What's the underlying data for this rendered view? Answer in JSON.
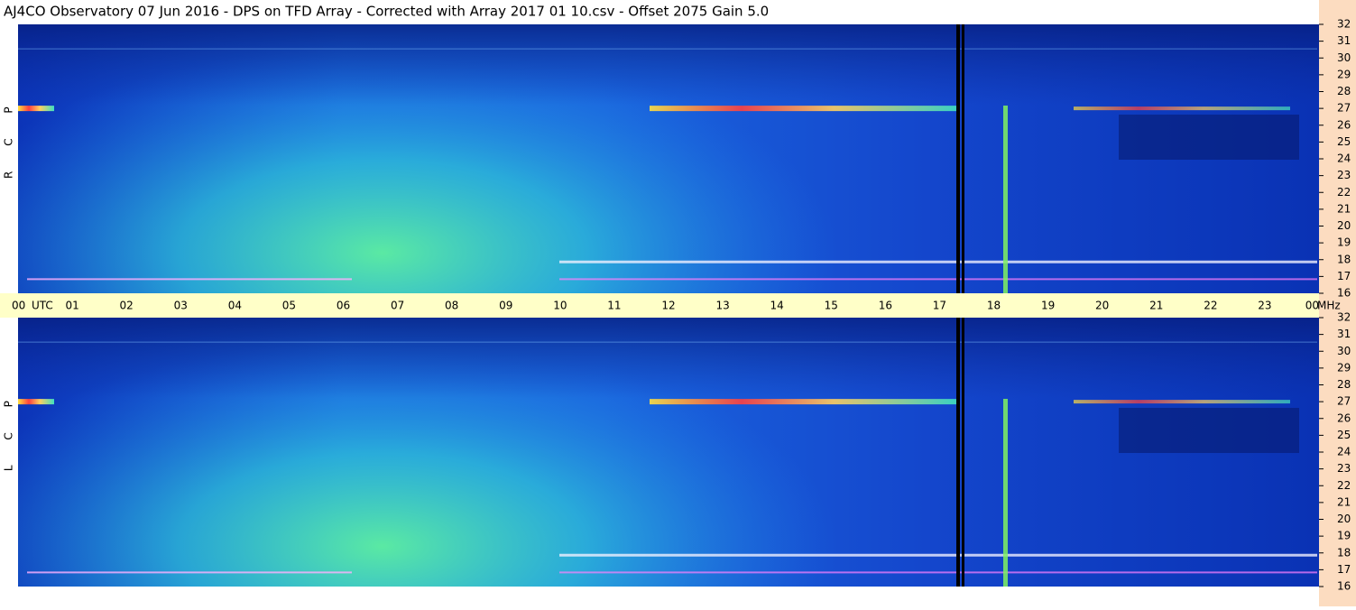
{
  "header": {
    "title": "AJ4CO Observatory  07 Jun 2016  -  DPS on TFD Array  -  Corrected with Array 2017 01 10.csv  -  Offset 2075  Gain 5.0"
  },
  "panels": [
    {
      "label": "R C P"
    },
    {
      "label": "L C P"
    }
  ],
  "time_axis": {
    "unit": "UTC",
    "hours": [
      "00",
      "01",
      "02",
      "03",
      "04",
      "05",
      "06",
      "07",
      "08",
      "09",
      "10",
      "11",
      "12",
      "13",
      "14",
      "15",
      "16",
      "17",
      "18",
      "19",
      "20",
      "21",
      "22",
      "23",
      "00"
    ]
  },
  "frequency_axis": {
    "unit": "MHz",
    "labels": [
      "32",
      "31",
      "30",
      "29",
      "28",
      "27",
      "26",
      "25",
      "24",
      "23",
      "22",
      "21",
      "20",
      "19",
      "18",
      "17",
      "16"
    ]
  }
}
